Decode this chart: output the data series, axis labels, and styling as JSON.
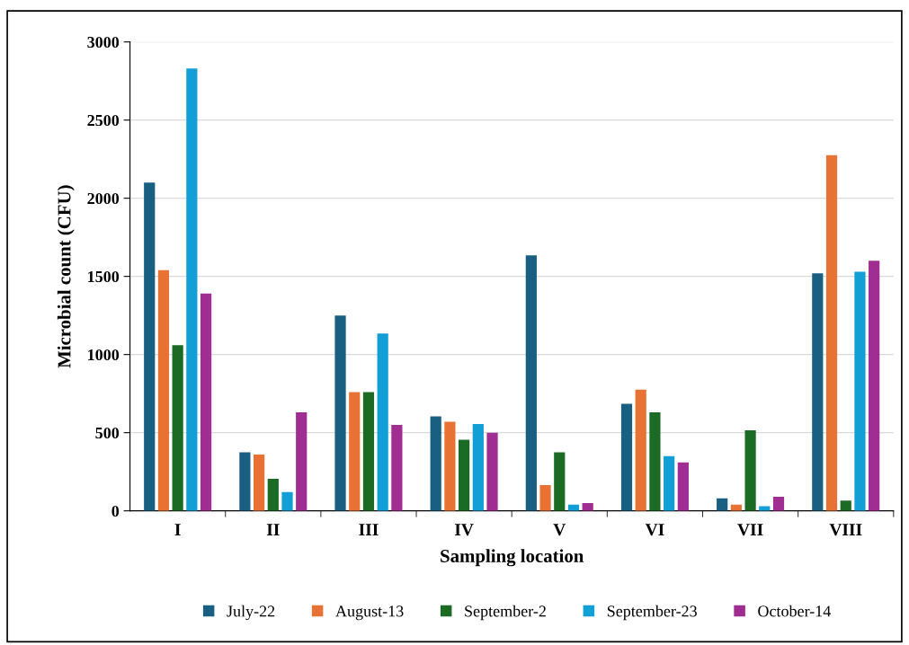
{
  "chart_data": {
    "type": "bar",
    "xlabel": "Sampling location",
    "ylabel": "Microbial count (CFU)",
    "categories": [
      "I",
      "II",
      "III",
      "IV",
      "V",
      "VI",
      "VII",
      "VIII"
    ],
    "series": [
      {
        "name": "July-22",
        "color": "#185f82",
        "values": [
          2100,
          375,
          1250,
          605,
          1635,
          685,
          80,
          1520
        ]
      },
      {
        "name": "August-13",
        "color": "#e87234",
        "values": [
          1540,
          360,
          760,
          570,
          165,
          775,
          40,
          2275
        ]
      },
      {
        "name": "September-2",
        "color": "#1b6b25",
        "values": [
          1060,
          205,
          760,
          455,
          375,
          630,
          515,
          65
        ]
      },
      {
        "name": "September-23",
        "color": "#129fd6",
        "values": [
          2830,
          120,
          1135,
          555,
          40,
          350,
          30,
          1530
        ]
      },
      {
        "name": "October-14",
        "color": "#a02d91",
        "values": [
          1390,
          630,
          550,
          500,
          50,
          310,
          90,
          1600
        ]
      }
    ],
    "ylim": [
      0,
      3000
    ],
    "yticks": [
      0,
      500,
      1000,
      1500,
      2000,
      2500,
      3000
    ],
    "grid": "y",
    "legend": "bottom"
  }
}
